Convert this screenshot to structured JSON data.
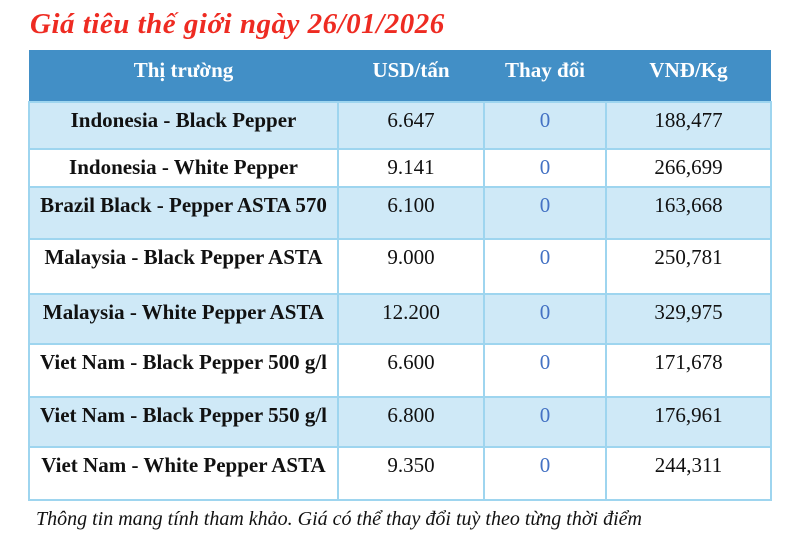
{
  "page": {
    "title": "Giá tiêu thế giới ngày 26/01/2026",
    "disclaimer": "Thông tin mang tính tham khảo. Giá có thể thay đổi tuỳ theo từng thời điểm"
  },
  "table": {
    "columns": [
      "Thị trường",
      "USD/tấn",
      "Thay đổi",
      "VNĐ/Kg"
    ],
    "rows": [
      {
        "market": "Indonesia - Black Pepper",
        "usd_per_ton": "6.647",
        "change": "0",
        "vnd_per_kg": "188,477"
      },
      {
        "market": "Indonesia - White Pepper",
        "usd_per_ton": "9.141",
        "change": "0",
        "vnd_per_kg": "266,699"
      },
      {
        "market": "Brazil Black - Pepper ASTA 570",
        "usd_per_ton": "6.100",
        "change": "0",
        "vnd_per_kg": "163,668"
      },
      {
        "market": "Malaysia - Black Pepper ASTA",
        "usd_per_ton": "9.000",
        "change": "0",
        "vnd_per_kg": "250,781"
      },
      {
        "market": "Malaysia - White Pepper ASTA",
        "usd_per_ton": "12.200",
        "change": "0",
        "vnd_per_kg": "329,975"
      },
      {
        "market": "Viet Nam - Black Pepper 500 g/l",
        "usd_per_ton": "6.600",
        "change": "0",
        "vnd_per_kg": "171,678"
      },
      {
        "market": "Viet Nam - Black Pepper 550 g/l",
        "usd_per_ton": "6.800",
        "change": "0",
        "vnd_per_kg": "176,961"
      },
      {
        "market": "Viet Nam - White Pepper ASTA",
        "usd_per_ton": "9.350",
        "change": "0",
        "vnd_per_kg": "244,311"
      }
    ]
  },
  "colors": {
    "title_red": "#ee2b22",
    "header_bg": "#428fc6",
    "row_alt_bg": "#cfe9f7",
    "border_blue": "#9ed5ef",
    "change_blue": "#4472c4"
  }
}
